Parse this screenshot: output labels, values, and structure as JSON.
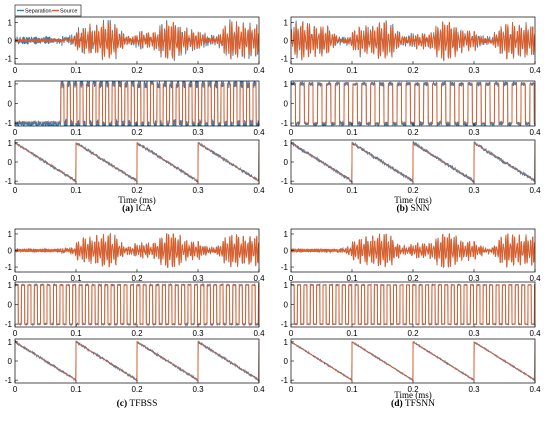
{
  "legend": {
    "separation_label": "Separation",
    "source_label": "Source",
    "separation_color": "#2a7fc1",
    "source_color": "#e85a1c"
  },
  "chart_data": [
    {
      "type": "line",
      "panel_letter": "(a)",
      "panel_name": "ICA",
      "xlabel": "Time (ms)",
      "x_ticks": [
        0,
        0.1,
        0.2,
        0.3,
        0.4
      ],
      "xlim": [
        0,
        0.4
      ],
      "subplots": [
        {
          "signal": "noise",
          "ylim": [
            -1.3,
            1.3
          ],
          "y_ticks": [
            -1,
            0,
            1
          ],
          "x_ticks": [
            0,
            0.1,
            0.2,
            0.3,
            0.4
          ],
          "onset_ms": 0.075,
          "separation_deviation": 0.18
        },
        {
          "signal": "square",
          "ylim": [
            -1.15,
            1.15
          ],
          "y_ticks": [
            -1,
            0,
            1
          ],
          "x_ticks": [
            0,
            0.1,
            0.2,
            0.3,
            0.4
          ],
          "onset_ms": 0.075,
          "period_ms": 0.0105,
          "separation_deviation": 0.45
        },
        {
          "signal": "sawtooth",
          "ylim": [
            -1.15,
            1.15
          ],
          "y_ticks": [
            -1,
            0,
            1
          ],
          "x_ticks": [
            0,
            0.1,
            0.2,
            0.3,
            0.4
          ],
          "period_ms": 0.1,
          "separation_deviation": 0.06
        }
      ]
    },
    {
      "type": "line",
      "panel_letter": "(b)",
      "panel_name": "SNN",
      "xlabel": "Time (ms)",
      "x_ticks": [
        0,
        0.1,
        0.2,
        0.3,
        0.4
      ],
      "xlim": [
        0,
        0.4
      ],
      "subplots": [
        {
          "signal": "noise",
          "ylim": [
            -1.3,
            1.3
          ],
          "y_ticks": [
            -1,
            0,
            1
          ],
          "x_ticks": [
            0,
            0.1,
            0.2,
            0.3,
            0.4
          ],
          "onset_ms": 0.0,
          "separation_deviation": 0.14
        },
        {
          "signal": "square",
          "ylim": [
            -1.15,
            1.15
          ],
          "y_ticks": [
            -1,
            0,
            1
          ],
          "x_ticks": [
            0,
            0.1,
            0.2,
            0.3,
            0.4
          ],
          "onset_ms": 0.0,
          "period_ms": 0.0145,
          "separation_deviation": 0.2
        },
        {
          "signal": "sawtooth",
          "ylim": [
            -1.15,
            1.15
          ],
          "y_ticks": [
            -1,
            0,
            1
          ],
          "x_ticks": [
            0,
            0.1,
            0.2,
            0.3,
            0.4
          ],
          "period_ms": 0.1,
          "separation_deviation": 0.08
        }
      ]
    },
    {
      "type": "line",
      "panel_letter": "(c)",
      "panel_name": "TFBSS",
      "xlabel": "",
      "x_ticks": [
        0,
        0.1,
        0.2,
        0.3,
        0.4
      ],
      "xlim": [
        0,
        0.4
      ],
      "subplots": [
        {
          "signal": "noise",
          "ylim": [
            -1.3,
            1.3
          ],
          "y_ticks": [
            -1,
            0,
            1
          ],
          "x_ticks": [
            0,
            0.1,
            0.2,
            0.3,
            0.4
          ],
          "onset_ms": 0.075,
          "separation_deviation": 0.05
        },
        {
          "signal": "square",
          "ylim": [
            -1.15,
            1.15
          ],
          "y_ticks": [
            -1,
            0,
            1
          ],
          "x_ticks": [
            0,
            0.1,
            0.2,
            0.3,
            0.4
          ],
          "onset_ms": 0.0,
          "period_ms": 0.0105,
          "separation_deviation": 0.05
        },
        {
          "signal": "sawtooth",
          "ylim": [
            -1.15,
            1.15
          ],
          "y_ticks": [
            -1,
            0,
            1
          ],
          "x_ticks": [
            0,
            0.1,
            0.2,
            0.3,
            0.4
          ],
          "period_ms": 0.1,
          "separation_deviation": 0.05
        }
      ]
    },
    {
      "type": "line",
      "panel_letter": "(d)",
      "panel_name": "TFSNN",
      "xlabel": "Time (ms)",
      "x_ticks": [
        0,
        0.1,
        0.2,
        0.3,
        0.4
      ],
      "xlim": [
        0,
        0.4
      ],
      "subplots": [
        {
          "signal": "noise",
          "ylim": [
            -1.3,
            1.3
          ],
          "y_ticks": [
            -1,
            0,
            1
          ],
          "x_ticks": [
            0,
            0.1,
            0.2,
            0.3,
            0.4
          ],
          "onset_ms": 0.075,
          "separation_deviation": 0.04
        },
        {
          "signal": "square",
          "ylim": [
            -1.15,
            1.15
          ],
          "y_ticks": [
            -1,
            0,
            1
          ],
          "x_ticks": [
            0,
            0.1,
            0.2,
            0.3,
            0.4
          ],
          "onset_ms": 0.0,
          "period_ms": 0.0105,
          "separation_deviation": 0.03
        },
        {
          "signal": "sawtooth",
          "ylim": [
            -1.15,
            1.15
          ],
          "y_ticks": [
            -1,
            0,
            1
          ],
          "x_ticks": [
            0,
            0.1,
            0.2,
            0.3,
            0.4
          ],
          "period_ms": 0.1,
          "separation_deviation": 0.03
        }
      ]
    }
  ]
}
